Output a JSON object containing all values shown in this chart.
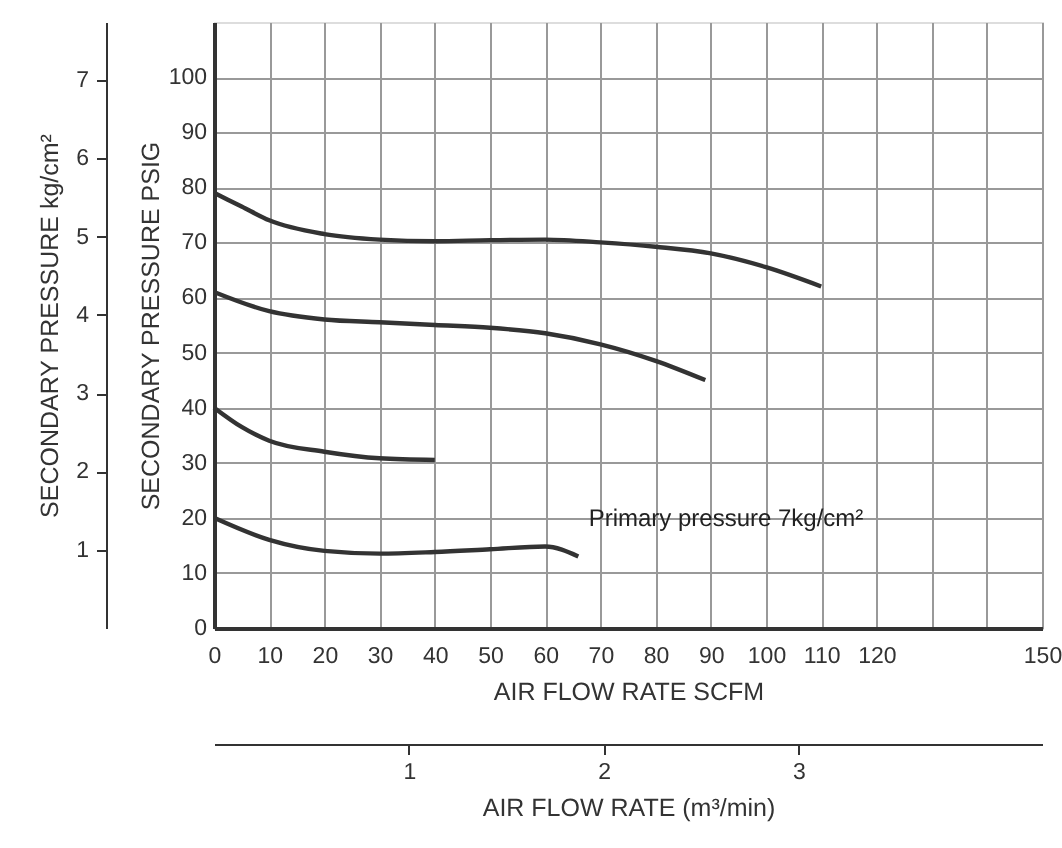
{
  "chart_data": {
    "type": "line",
    "xlabel": "AIR FLOW RATE SCFM",
    "ylabel": "SECONDARY PRESSURE PSIG",
    "y2label": "SECONDARY PRESSURE  kg/cm²",
    "x2label": "AIR FLOW RATE (m³/min)",
    "annotations": [
      "Primary pressure 7kg/cm²"
    ],
    "series": [
      {
        "color": "#333333",
        "x": [
          0,
          5,
          10,
          20,
          30,
          40,
          50,
          60,
          70,
          80,
          90,
          100,
          110
        ],
        "values": [
          79,
          76.5,
          74,
          71.5,
          70.5,
          70.2,
          70.4,
          70.5,
          70,
          69.2,
          68,
          65.5,
          62
        ]
      },
      {
        "color": "#333333",
        "x": [
          0,
          10,
          20,
          30,
          40,
          50,
          60,
          70,
          80,
          89
        ],
        "values": [
          61,
          57.5,
          56,
          55.5,
          55,
          54.5,
          53.5,
          51.5,
          48.5,
          45
        ]
      },
      {
        "color": "#333333",
        "x": [
          0,
          5,
          10,
          20,
          30,
          40
        ],
        "values": [
          40,
          36.5,
          34,
          32,
          30.8,
          30.5
        ]
      },
      {
        "color": "#333333",
        "x": [
          0,
          10,
          20,
          30,
          40,
          50,
          60,
          66
        ],
        "values": [
          20,
          16,
          14,
          13.5,
          13.8,
          14.3,
          14.8,
          13
        ]
      }
    ],
    "xlim": [
      0,
      150
    ],
    "xticks": [
      0,
      10,
      20,
      30,
      40,
      50,
      60,
      70,
      80,
      90,
      100,
      110,
      120,
      {
        "value": 130,
        "label": null
      },
      {
        "value": 140,
        "label": null
      },
      150
    ],
    "ylim": [
      0,
      110
    ],
    "yticks": [
      0,
      10,
      20,
      30,
      40,
      50,
      60,
      70,
      80,
      90,
      100
    ],
    "y2lim": [
      0,
      7.74
    ],
    "y2ticks": [
      1,
      2,
      3,
      4,
      5,
      6,
      7
    ],
    "x2lim": [
      0,
      4.25
    ],
    "x2ticks": [
      1,
      2,
      3
    ],
    "grid": true,
    "legend": false,
    "marker": "none",
    "line_style": "solid"
  }
}
